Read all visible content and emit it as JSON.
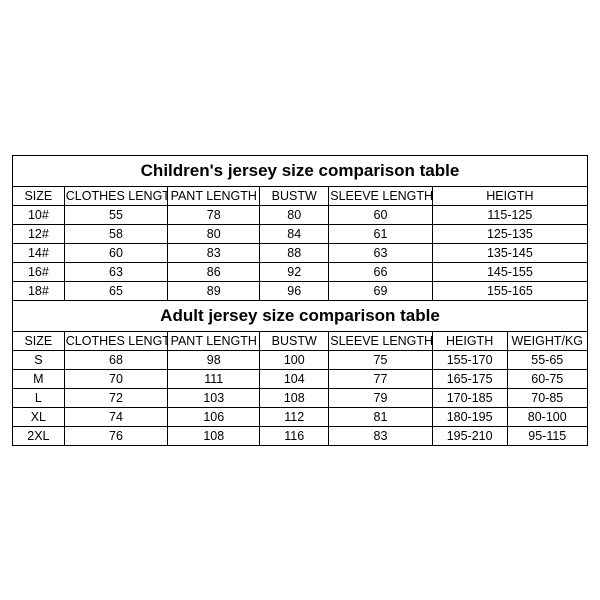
{
  "colors": {
    "border": "#000000",
    "bg": "#ffffff",
    "text": "#000000"
  },
  "children": {
    "title": "Children's jersey size comparison table",
    "columns": [
      "SIZE",
      "CLOTHES LENGTH",
      "PANT LENGTH",
      "BUSTW",
      "SLEEVE LENGTH",
      "HEIGTH"
    ],
    "rows": [
      [
        "10#",
        "55",
        "78",
        "80",
        "60",
        "115-125"
      ],
      [
        "12#",
        "58",
        "80",
        "84",
        "61",
        "125-135"
      ],
      [
        "14#",
        "60",
        "83",
        "88",
        "63",
        "135-145"
      ],
      [
        "16#",
        "63",
        "86",
        "92",
        "66",
        "145-155"
      ],
      [
        "18#",
        "65",
        "89",
        "96",
        "69",
        "155-165"
      ]
    ]
  },
  "adult": {
    "title": "Adult jersey size comparison table",
    "columns": [
      "SIZE",
      "CLOTHES LENGTH",
      "PANT LENGTH",
      "BUSTW",
      "SLEEVE LENGTH",
      "HEIGTH",
      "WEIGHT/KG"
    ],
    "rows": [
      [
        "S",
        "68",
        "98",
        "100",
        "75",
        "155-170",
        "55-65"
      ],
      [
        "M",
        "70",
        "111",
        "104",
        "77",
        "165-175",
        "60-75"
      ],
      [
        "L",
        "72",
        "103",
        "108",
        "79",
        "170-185",
        "70-85"
      ],
      [
        "XL",
        "74",
        "106",
        "112",
        "81",
        "180-195",
        "80-100"
      ],
      [
        "2XL",
        "76",
        "108",
        "116",
        "83",
        "195-210",
        "95-115"
      ]
    ]
  }
}
